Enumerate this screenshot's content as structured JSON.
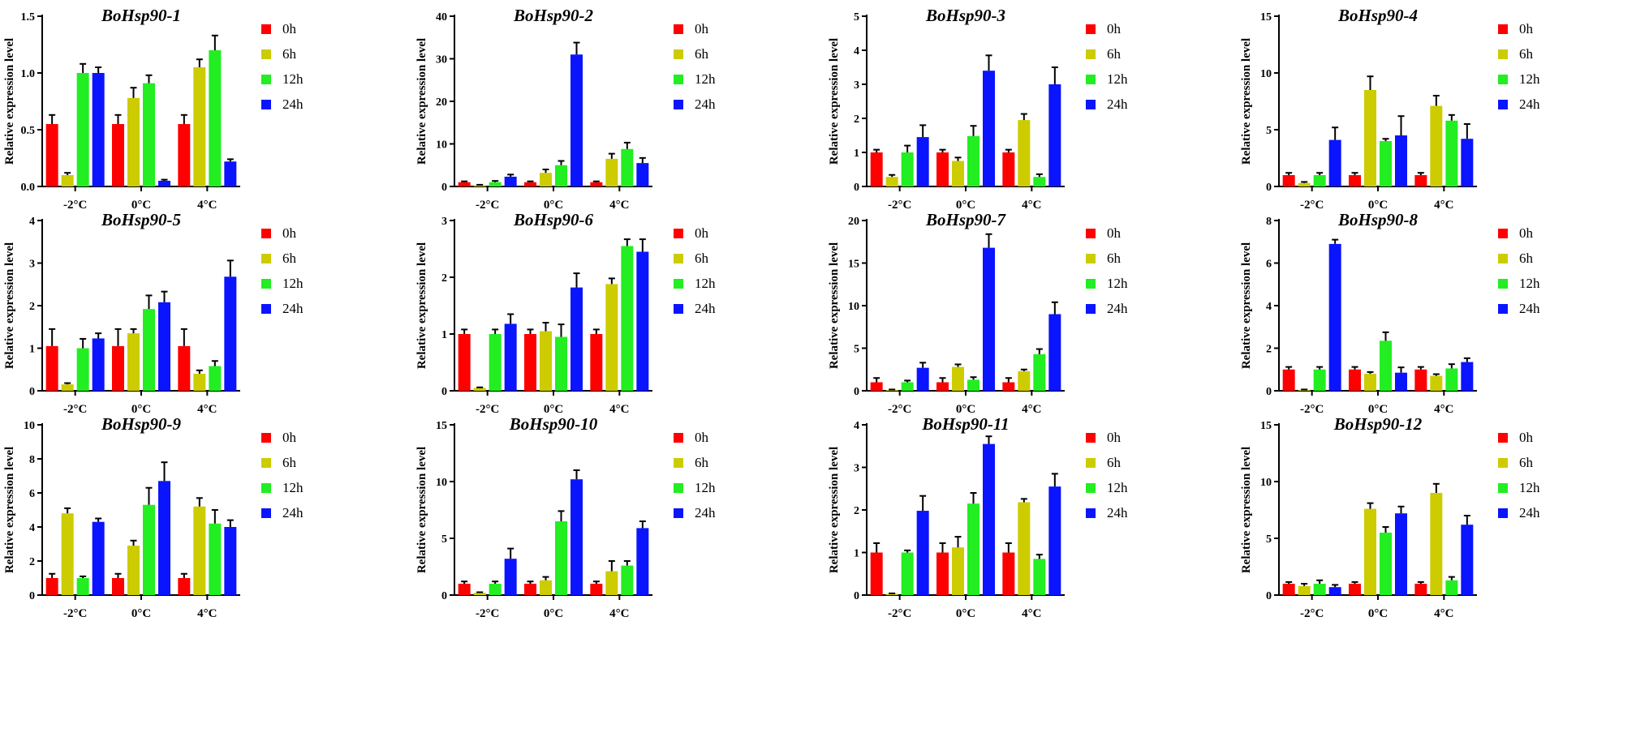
{
  "figure": {
    "legend_labels": [
      "0h",
      "6h",
      "12h",
      "24h"
    ],
    "ylabel": "Relative expression level",
    "categories": [
      "-2°C",
      "0°C",
      "4°C"
    ],
    "colors": {
      "0h": "#ff0000",
      "6h": "#cccc00",
      "12h": "#22ee22",
      "24h": "#0a14ff",
      "axis": "#000000"
    }
  },
  "chart_data": [
    {
      "type": "bar",
      "title": "BoHsp90-1",
      "ylabel": "Relative expression level",
      "categories": [
        "-2°C",
        "0°C",
        "4°C"
      ],
      "ylim": [
        0,
        1.5
      ],
      "yticks": [
        "0.0",
        "0.5",
        "1.0",
        "1.5"
      ],
      "series": [
        {
          "name": "0h",
          "values": [
            0.55,
            0.55,
            0.55
          ],
          "errors": [
            0.08,
            0.08,
            0.08
          ]
        },
        {
          "name": "6h",
          "values": [
            0.1,
            0.78,
            1.05
          ],
          "errors": [
            0.02,
            0.09,
            0.07
          ]
        },
        {
          "name": "12h",
          "values": [
            1.0,
            0.91,
            1.2
          ],
          "errors": [
            0.08,
            0.07,
            0.13
          ]
        },
        {
          "name": "24h",
          "values": [
            1.0,
            0.05,
            0.22
          ],
          "errors": [
            0.05,
            0.01,
            0.02
          ]
        }
      ]
    },
    {
      "type": "bar",
      "title": "BoHsp90-2",
      "ylabel": "Relative expression level",
      "categories": [
        "-2°C",
        "0°C",
        "4°C"
      ],
      "ylim": [
        0,
        40
      ],
      "yticks": [
        "0",
        "10",
        "20",
        "30",
        "40"
      ],
      "series": [
        {
          "name": "0h",
          "values": [
            1,
            1,
            1
          ],
          "errors": [
            0.2,
            0.2,
            0.2
          ]
        },
        {
          "name": "6h",
          "values": [
            0.3,
            3.2,
            6.5
          ],
          "errors": [
            0.1,
            0.8,
            1.2
          ]
        },
        {
          "name": "12h",
          "values": [
            1.0,
            5.0,
            8.8
          ],
          "errors": [
            0.3,
            1.0,
            1.5
          ]
        },
        {
          "name": "24h",
          "values": [
            2.3,
            31.0,
            5.5
          ],
          "errors": [
            0.5,
            2.8,
            1.2
          ]
        }
      ]
    },
    {
      "type": "bar",
      "title": "BoHsp90-3",
      "ylabel": "Relative expression level",
      "categories": [
        "-2°C",
        "0°C",
        "4°C"
      ],
      "ylim": [
        0,
        5
      ],
      "yticks": [
        "0",
        "1",
        "2",
        "3",
        "4",
        "5"
      ],
      "series": [
        {
          "name": "0h",
          "values": [
            1.0,
            1.0,
            1.0
          ],
          "errors": [
            0.08,
            0.08,
            0.08
          ]
        },
        {
          "name": "6h",
          "values": [
            0.28,
            0.75,
            1.95
          ],
          "errors": [
            0.06,
            0.1,
            0.18
          ]
        },
        {
          "name": "12h",
          "values": [
            1.0,
            1.48,
            0.28
          ],
          "errors": [
            0.2,
            0.3,
            0.08
          ]
        },
        {
          "name": "24h",
          "values": [
            1.45,
            3.4,
            3.0
          ],
          "errors": [
            0.35,
            0.45,
            0.5
          ]
        }
      ]
    },
    {
      "type": "bar",
      "title": "BoHsp90-4",
      "ylabel": "Relative expression level",
      "categories": [
        "-2°C",
        "0°C",
        "4°C"
      ],
      "ylim": [
        0,
        15
      ],
      "yticks": [
        "0",
        "5",
        "10",
        "15"
      ],
      "series": [
        {
          "name": "0h",
          "values": [
            1,
            1,
            1
          ],
          "errors": [
            0.2,
            0.2,
            0.2
          ]
        },
        {
          "name": "6h",
          "values": [
            0.3,
            8.5,
            7.1
          ],
          "errors": [
            0.1,
            1.2,
            0.9
          ]
        },
        {
          "name": "12h",
          "values": [
            1.0,
            4.0,
            5.8
          ],
          "errors": [
            0.2,
            0.2,
            0.5
          ]
        },
        {
          "name": "24h",
          "values": [
            4.1,
            4.5,
            4.2
          ],
          "errors": [
            1.1,
            1.7,
            1.3
          ]
        }
      ]
    },
    {
      "type": "bar",
      "title": "BoHsp90-5",
      "ylabel": "Relative expression level",
      "categories": [
        "-2°C",
        "0°C",
        "4°C"
      ],
      "ylim": [
        0,
        4
      ],
      "yticks": [
        "0",
        "1",
        "2",
        "3",
        "4"
      ],
      "series": [
        {
          "name": "0h",
          "values": [
            1.05,
            1.05,
            1.05
          ],
          "errors": [
            0.4,
            0.4,
            0.4
          ]
        },
        {
          "name": "6h",
          "values": [
            0.15,
            1.35,
            0.4
          ],
          "errors": [
            0.03,
            0.1,
            0.08
          ]
        },
        {
          "name": "12h",
          "values": [
            1.0,
            1.92,
            0.58
          ],
          "errors": [
            0.22,
            0.32,
            0.12
          ]
        },
        {
          "name": "24h",
          "values": [
            1.23,
            2.08,
            2.68
          ],
          "errors": [
            0.12,
            0.25,
            0.38
          ]
        }
      ]
    },
    {
      "type": "bar",
      "title": "BoHsp90-6",
      "ylabel": "Relative expression level",
      "categories": [
        "-2°C",
        "0°C",
        "4°C"
      ],
      "ylim": [
        0,
        3
      ],
      "yticks": [
        "0",
        "1",
        "2",
        "3"
      ],
      "series": [
        {
          "name": "0h",
          "values": [
            1.0,
            1.0,
            1.0
          ],
          "errors": [
            0.08,
            0.08,
            0.08
          ]
        },
        {
          "name": "6h",
          "values": [
            0.05,
            1.05,
            1.88
          ],
          "errors": [
            0.01,
            0.15,
            0.1
          ]
        },
        {
          "name": "12h",
          "values": [
            1.0,
            0.95,
            2.55
          ],
          "errors": [
            0.08,
            0.22,
            0.12
          ]
        },
        {
          "name": "24h",
          "values": [
            1.18,
            1.82,
            2.45
          ],
          "errors": [
            0.17,
            0.25,
            0.22
          ]
        }
      ]
    },
    {
      "type": "bar",
      "title": "BoHsp90-7",
      "ylabel": "Relative expression level",
      "categories": [
        "-2°C",
        "0°C",
        "4°C"
      ],
      "ylim": [
        0,
        20
      ],
      "yticks": [
        "0",
        "5",
        "10",
        "15",
        "20"
      ],
      "series": [
        {
          "name": "0h",
          "values": [
            1,
            1,
            1
          ],
          "errors": [
            0.5,
            0.5,
            0.5
          ]
        },
        {
          "name": "6h",
          "values": [
            0.1,
            2.8,
            2.3
          ],
          "errors": [
            0.05,
            0.3,
            0.2
          ]
        },
        {
          "name": "12h",
          "values": [
            1.0,
            1.3,
            4.3
          ],
          "errors": [
            0.2,
            0.3,
            0.6
          ]
        },
        {
          "name": "24h",
          "values": [
            2.7,
            16.8,
            9.0
          ],
          "errors": [
            0.6,
            1.6,
            1.4
          ]
        }
      ]
    },
    {
      "type": "bar",
      "title": "BoHsp90-8",
      "ylabel": "Relative expression level",
      "categories": [
        "-2°C",
        "0°C",
        "4°C"
      ],
      "ylim": [
        0,
        8
      ],
      "yticks": [
        "0",
        "2",
        "4",
        "6",
        "8"
      ],
      "series": [
        {
          "name": "0h",
          "values": [
            1.0,
            1.0,
            1.0
          ],
          "errors": [
            0.12,
            0.12,
            0.12
          ]
        },
        {
          "name": "6h",
          "values": [
            0.05,
            0.8,
            0.7
          ],
          "errors": [
            0.01,
            0.08,
            0.08
          ]
        },
        {
          "name": "12h",
          "values": [
            1.0,
            2.35,
            1.05
          ],
          "errors": [
            0.12,
            0.4,
            0.2
          ]
        },
        {
          "name": "24h",
          "values": [
            6.9,
            0.85,
            1.35
          ],
          "errors": [
            0.2,
            0.25,
            0.18
          ]
        }
      ]
    },
    {
      "type": "bar",
      "title": "BoHsp90-9",
      "ylabel": "Relative expression level",
      "categories": [
        "-2°C",
        "0°C",
        "4°C"
      ],
      "ylim": [
        0,
        10
      ],
      "yticks": [
        "0",
        "2",
        "4",
        "6",
        "8",
        "10"
      ],
      "series": [
        {
          "name": "0h",
          "values": [
            1.0,
            1.0,
            1.0
          ],
          "errors": [
            0.25,
            0.25,
            0.25
          ]
        },
        {
          "name": "6h",
          "values": [
            4.8,
            2.9,
            5.2
          ],
          "errors": [
            0.3,
            0.3,
            0.5
          ]
        },
        {
          "name": "12h",
          "values": [
            1.0,
            5.3,
            4.2
          ],
          "errors": [
            0.1,
            1.0,
            0.8
          ]
        },
        {
          "name": "24h",
          "values": [
            4.3,
            6.7,
            4.0
          ],
          "errors": [
            0.2,
            1.1,
            0.4
          ]
        }
      ]
    },
    {
      "type": "bar",
      "title": "BoHsp90-10",
      "ylabel": "Relative expression level",
      "categories": [
        "-2°C",
        "0°C",
        "4°C"
      ],
      "ylim": [
        0,
        15
      ],
      "yticks": [
        "0",
        "5",
        "10",
        "15"
      ],
      "series": [
        {
          "name": "0h",
          "values": [
            1,
            1,
            1
          ],
          "errors": [
            0.2,
            0.2,
            0.2
          ]
        },
        {
          "name": "6h",
          "values": [
            0.2,
            1.3,
            2.1
          ],
          "errors": [
            0.05,
            0.3,
            0.9
          ]
        },
        {
          "name": "12h",
          "values": [
            1.0,
            6.5,
            2.6
          ],
          "errors": [
            0.2,
            0.9,
            0.4
          ]
        },
        {
          "name": "24h",
          "values": [
            3.2,
            10.2,
            5.9
          ],
          "errors": [
            0.9,
            0.8,
            0.6
          ]
        }
      ]
    },
    {
      "type": "bar",
      "title": "BoHsp90-11",
      "ylabel": "Relative expression level",
      "categories": [
        "-2°C",
        "0°C",
        "4°C"
      ],
      "ylim": [
        0,
        4
      ],
      "yticks": [
        "0",
        "1",
        "2",
        "3",
        "4"
      ],
      "series": [
        {
          "name": "0h",
          "values": [
            1.0,
            1.0,
            1.0
          ],
          "errors": [
            0.22,
            0.22,
            0.22
          ]
        },
        {
          "name": "6h",
          "values": [
            0.03,
            1.12,
            2.18
          ],
          "errors": [
            0.01,
            0.25,
            0.08
          ]
        },
        {
          "name": "12h",
          "values": [
            1.0,
            2.15,
            0.85
          ],
          "errors": [
            0.05,
            0.25,
            0.1
          ]
        },
        {
          "name": "24h",
          "values": [
            1.98,
            3.55,
            2.55
          ],
          "errors": [
            0.35,
            0.18,
            0.3
          ]
        }
      ]
    },
    {
      "type": "bar",
      "title": "BoHsp90-12",
      "ylabel": "Relative expression level",
      "categories": [
        "-2°C",
        "0°C",
        "4°C"
      ],
      "ylim": [
        0,
        15
      ],
      "yticks": [
        "0",
        "5",
        "10",
        "15"
      ],
      "series": [
        {
          "name": "0h",
          "values": [
            1.0,
            1.0,
            1.0
          ],
          "errors": [
            0.15,
            0.15,
            0.15
          ]
        },
        {
          "name": "6h",
          "values": [
            0.8,
            7.6,
            9.0
          ],
          "errors": [
            0.2,
            0.5,
            0.8
          ]
        },
        {
          "name": "12h",
          "values": [
            1.0,
            5.5,
            1.3
          ],
          "errors": [
            0.3,
            0.5,
            0.3
          ]
        },
        {
          "name": "24h",
          "values": [
            0.7,
            7.2,
            6.2
          ],
          "errors": [
            0.2,
            0.6,
            0.8
          ]
        }
      ]
    }
  ]
}
